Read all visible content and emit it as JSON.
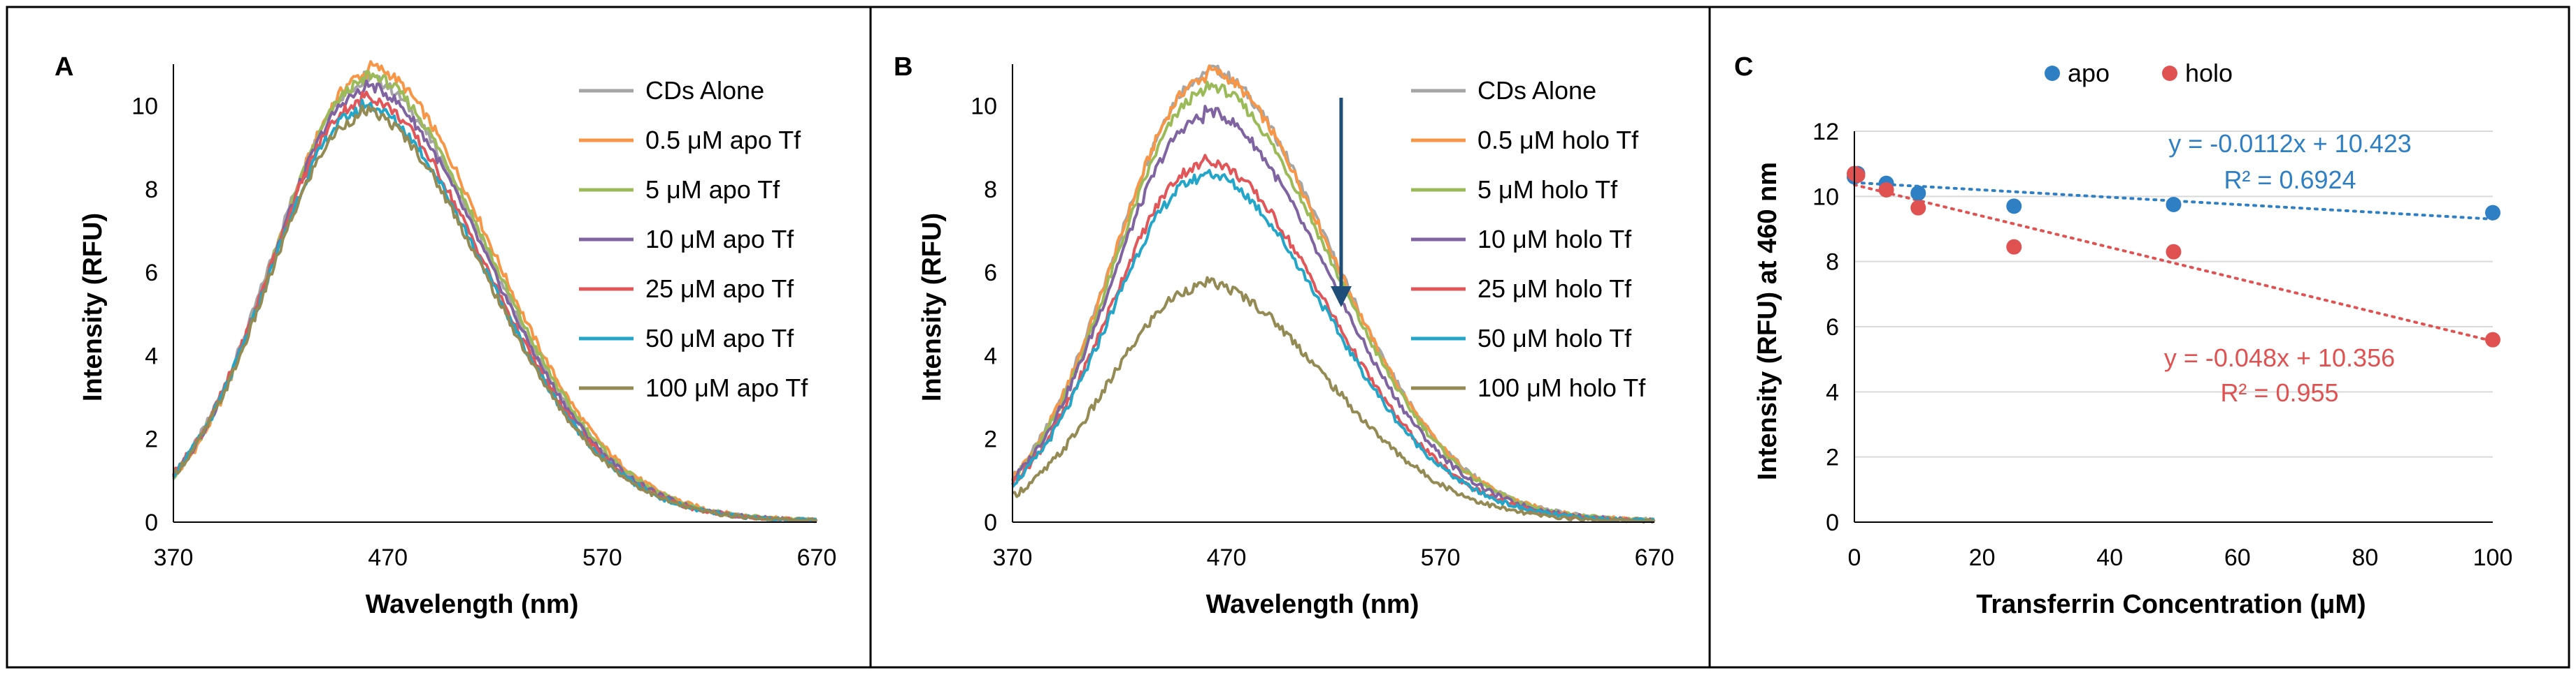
{
  "chart_data": [
    {
      "type": "line",
      "panel_label": "A",
      "xlabel": "Wavelength (nm)",
      "ylabel": "Intensity (RFU)",
      "xlim": [
        370,
        670
      ],
      "ylim": [
        0,
        11
      ],
      "x_ticks": [
        "370",
        "470",
        "570",
        "670"
      ],
      "y_ticks": [
        "0",
        "2",
        "4",
        "6",
        "8",
        "10"
      ],
      "legend_position": "top-right",
      "series": [
        {
          "name": "CDs Alone",
          "color": "#a5a5a5",
          "peak": 10.5,
          "peak_x": 458
        },
        {
          "name": "0.5 μM apo Tf",
          "color": "#f79646",
          "peak": 10.75,
          "peak_x": 460
        },
        {
          "name": "5 μM apo Tf",
          "color": "#9bbb59",
          "peak": 10.55,
          "peak_x": 459
        },
        {
          "name": "10 μM apo Tf",
          "color": "#8064a2",
          "peak": 10.3,
          "peak_x": 458
        },
        {
          "name": "25 μM apo Tf",
          "color": "#e15759",
          "peak": 10.05,
          "peak_x": 457
        },
        {
          "name": "50 μM apo Tf",
          "color": "#23a6c8",
          "peak": 9.85,
          "peak_x": 457
        },
        {
          "name": "100 μM apo Tf",
          "color": "#948a54",
          "peak": 9.7,
          "peak_x": 457
        }
      ]
    },
    {
      "type": "line",
      "panel_label": "B",
      "xlabel": "Wavelength (nm)",
      "ylabel": "Intensity (RFU)",
      "xlim": [
        370,
        670
      ],
      "ylim": [
        0,
        11
      ],
      "x_ticks": [
        "370",
        "470",
        "570",
        "670"
      ],
      "y_ticks": [
        "0",
        "2",
        "4",
        "6",
        "8",
        "10"
      ],
      "legend_position": "top-right",
      "annotation": "downward arrow indicating decreasing intensity with holo Tf",
      "series": [
        {
          "name": "CDs Alone",
          "color": "#a5a5a5",
          "peak": 10.7,
          "peak_x": 460
        },
        {
          "name": "0.5 μM holo Tf",
          "color": "#f79646",
          "peak": 10.65,
          "peak_x": 460
        },
        {
          "name": "5 μM holo Tf",
          "color": "#9bbb59",
          "peak": 10.3,
          "peak_x": 460
        },
        {
          "name": "10 μM holo Tf",
          "color": "#8064a2",
          "peak": 9.7,
          "peak_x": 459
        },
        {
          "name": "25 μM holo Tf",
          "color": "#e15759",
          "peak": 8.55,
          "peak_x": 458
        },
        {
          "name": "50 μM holo Tf",
          "color": "#23a6c8",
          "peak": 8.25,
          "peak_x": 458
        },
        {
          "name": "100 μM holo Tf",
          "color": "#948a54",
          "peak": 5.65,
          "peak_x": 458
        }
      ]
    },
    {
      "type": "scatter",
      "panel_label": "C",
      "xlabel": "Transferrin Concentration (μM)",
      "ylabel": "Intensity (RFU) at 460 nm",
      "xlim": [
        0,
        100
      ],
      "ylim": [
        0,
        12
      ],
      "x_ticks": [
        "0",
        "20",
        "40",
        "60",
        "80",
        "100"
      ],
      "y_ticks": [
        "0",
        "2",
        "4",
        "6",
        "8",
        "10",
        "12"
      ],
      "legend_position": "top-center",
      "series": [
        {
          "name": "apo",
          "color": "#2e7fc4",
          "x": [
            0,
            0.5,
            5,
            10,
            25,
            50,
            100
          ],
          "y": [
            10.6,
            10.7,
            10.4,
            10.1,
            9.7,
            9.75,
            9.5
          ],
          "trendline": {
            "slope": -0.0112,
            "intercept": 10.423
          },
          "equation": "y = -0.0112x + 10.423",
          "r2": "R² = 0.6924"
        },
        {
          "name": "holo",
          "color": "#e05252",
          "x": [
            0,
            0.5,
            5,
            10,
            25,
            50,
            100
          ],
          "y": [
            10.7,
            10.65,
            10.2,
            9.65,
            8.45,
            8.3,
            5.6
          ],
          "trendline": {
            "slope": -0.048,
            "intercept": 10.356
          },
          "equation": "y = -0.048x + 10.356",
          "r2": "R² = 0.955"
        }
      ]
    }
  ]
}
